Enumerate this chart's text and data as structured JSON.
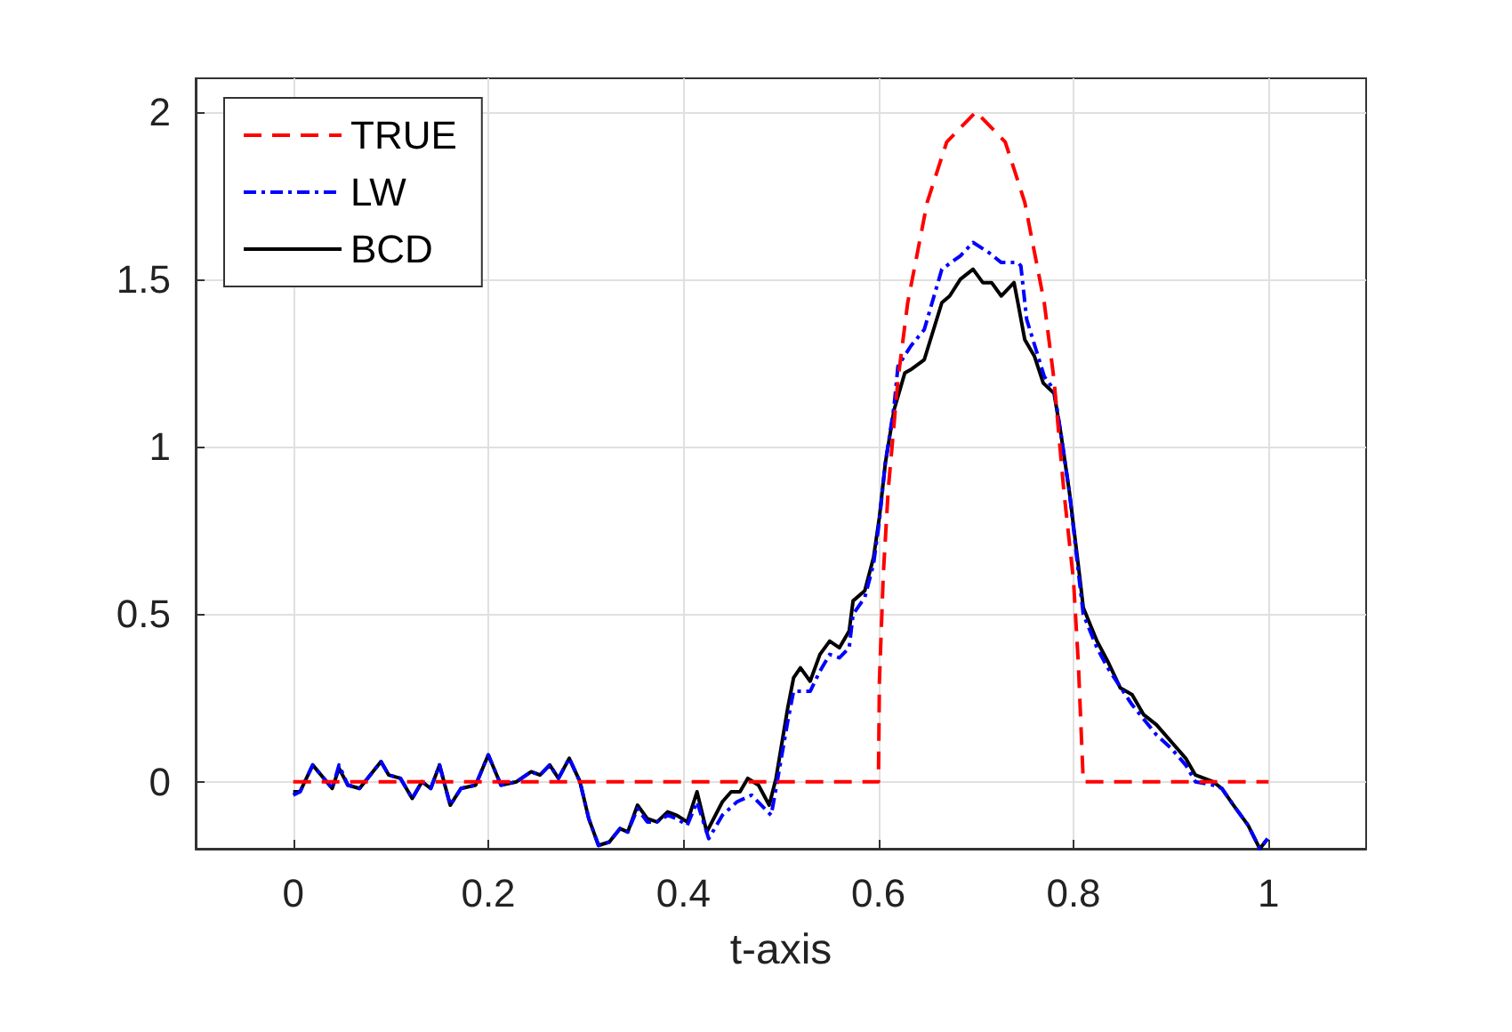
{
  "chart_data": {
    "type": "line",
    "xlabel": "t-axis",
    "xlim": [
      -0.1,
      1.1
    ],
    "xticks": [
      0,
      0.2,
      0.4,
      0.6,
      0.8,
      1
    ],
    "ylim": [
      -0.2,
      2.1
    ],
    "yticks": [
      0,
      0.5,
      1,
      1.5,
      2
    ],
    "grid": true,
    "legend": "top left",
    "marker": "none",
    "series": [
      {
        "name": "TRUE",
        "color": "#ff0000",
        "line_style": "dashed",
        "x": [
          0,
          0.6,
          0.601,
          0.605,
          0.61,
          0.62,
          0.63,
          0.65,
          0.67,
          0.7,
          0.73,
          0.75,
          0.77,
          0.78,
          0.79,
          0.8,
          0.805,
          0.81,
          1
        ],
        "values": [
          0,
          0,
          0.3,
          0.62,
          0.87,
          1.2,
          1.43,
          1.73,
          1.91,
          2,
          1.91,
          1.73,
          1.43,
          1.2,
          0.87,
          0.6,
          0.35,
          0,
          0
        ]
      },
      {
        "name": "LW",
        "color": "#0000ff",
        "line_style": "dashdot",
        "x": [
          0,
          0.007,
          0.02,
          0.04,
          0.047,
          0.056,
          0.068,
          0.09,
          0.098,
          0.11,
          0.122,
          0.132,
          0.141,
          0.15,
          0.161,
          0.172,
          0.187,
          0.2,
          0.213,
          0.229,
          0.244,
          0.253,
          0.263,
          0.272,
          0.283,
          0.294,
          0.303,
          0.313,
          0.324,
          0.335,
          0.343,
          0.353,
          0.363,
          0.373,
          0.384,
          0.393,
          0.404,
          0.414,
          0.426,
          0.44,
          0.455,
          0.47,
          0.49,
          0.495,
          0.507,
          0.513,
          0.52,
          0.53,
          0.54,
          0.55,
          0.56,
          0.57,
          0.574,
          0.586,
          0.595,
          0.601,
          0.607,
          0.616,
          0.62,
          0.633,
          0.647,
          0.665,
          0.684,
          0.697,
          0.713,
          0.726,
          0.743,
          0.746,
          0.752,
          0.77,
          0.78,
          0.787,
          0.796,
          0.806,
          0.81,
          0.824,
          0.835,
          0.86,
          0.885,
          0.9,
          0.915,
          0.925,
          0.943,
          0.952,
          0.964,
          0.979,
          0.991,
          0.999
        ],
        "values": [
          -0.04,
          -0.03,
          0.05,
          -0.02,
          0.05,
          -0.01,
          -0.02,
          0.06,
          0.02,
          0.01,
          -0.05,
          0.0,
          -0.02,
          0.05,
          -0.07,
          -0.02,
          -0.01,
          0.08,
          -0.01,
          0.0,
          0.03,
          0.02,
          0.05,
          0.01,
          0.07,
          0.0,
          -0.11,
          -0.19,
          -0.18,
          -0.14,
          -0.15,
          -0.08,
          -0.12,
          -0.12,
          -0.1,
          -0.11,
          -0.13,
          -0.06,
          -0.17,
          -0.1,
          -0.06,
          -0.04,
          -0.1,
          -0.02,
          0.18,
          0.27,
          0.27,
          0.27,
          0.33,
          0.38,
          0.37,
          0.4,
          0.5,
          0.55,
          0.65,
          0.78,
          0.95,
          1.12,
          1.24,
          1.3,
          1.35,
          1.53,
          1.57,
          1.61,
          1.58,
          1.55,
          1.55,
          1.54,
          1.38,
          1.21,
          1.17,
          1.04,
          0.86,
          0.6,
          0.5,
          0.4,
          0.34,
          0.23,
          0.14,
          0.1,
          0.05,
          0.0,
          -0.01,
          -0.02,
          -0.07,
          -0.13,
          -0.2,
          -0.17
        ]
      },
      {
        "name": "BCD",
        "color": "#000000",
        "line_style": "solid",
        "x": [
          0,
          0.007,
          0.02,
          0.04,
          0.047,
          0.056,
          0.068,
          0.09,
          0.098,
          0.11,
          0.122,
          0.132,
          0.141,
          0.15,
          0.161,
          0.172,
          0.187,
          0.2,
          0.213,
          0.229,
          0.244,
          0.253,
          0.263,
          0.272,
          0.283,
          0.294,
          0.303,
          0.313,
          0.324,
          0.335,
          0.343,
          0.353,
          0.363,
          0.373,
          0.384,
          0.393,
          0.404,
          0.414,
          0.424,
          0.44,
          0.449,
          0.458,
          0.466,
          0.477,
          0.488,
          0.495,
          0.507,
          0.513,
          0.52,
          0.53,
          0.54,
          0.55,
          0.56,
          0.57,
          0.574,
          0.586,
          0.595,
          0.601,
          0.607,
          0.616,
          0.627,
          0.633,
          0.647,
          0.665,
          0.673,
          0.684,
          0.697,
          0.707,
          0.716,
          0.726,
          0.739,
          0.743,
          0.75,
          0.76,
          0.769,
          0.78,
          0.787,
          0.796,
          0.806,
          0.81,
          0.824,
          0.835,
          0.848,
          0.86,
          0.872,
          0.885,
          0.903,
          0.915,
          0.925,
          0.943,
          0.952,
          0.964,
          0.979,
          0.991,
          0.999
        ],
        "values": [
          -0.03,
          -0.03,
          0.05,
          -0.02,
          0.04,
          -0.01,
          -0.02,
          0.06,
          0.02,
          0.01,
          -0.05,
          0.0,
          -0.02,
          0.05,
          -0.07,
          -0.02,
          -0.01,
          0.08,
          -0.01,
          0.0,
          0.03,
          0.02,
          0.05,
          0.01,
          0.07,
          0.0,
          -0.11,
          -0.19,
          -0.18,
          -0.14,
          -0.15,
          -0.07,
          -0.11,
          -0.12,
          -0.09,
          -0.1,
          -0.12,
          -0.03,
          -0.15,
          -0.06,
          -0.03,
          -0.03,
          0.01,
          -0.01,
          -0.07,
          0.01,
          0.22,
          0.31,
          0.34,
          0.3,
          0.38,
          0.42,
          0.4,
          0.45,
          0.54,
          0.57,
          0.67,
          0.79,
          0.95,
          1.11,
          1.22,
          1.23,
          1.26,
          1.43,
          1.45,
          1.5,
          1.53,
          1.49,
          1.49,
          1.45,
          1.49,
          1.43,
          1.32,
          1.27,
          1.19,
          1.16,
          1.04,
          0.86,
          0.62,
          0.52,
          0.42,
          0.36,
          0.28,
          0.26,
          0.2,
          0.17,
          0.11,
          0.07,
          0.02,
          0.0,
          -0.02,
          -0.07,
          -0.13,
          -0.2,
          -0.17
        ]
      }
    ]
  }
}
